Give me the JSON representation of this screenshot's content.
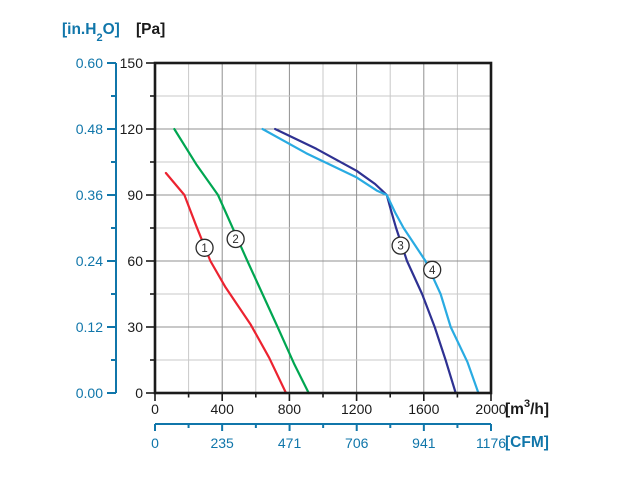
{
  "units": {
    "inh2o": {
      "pre": "[in.H",
      "sub": "2",
      "post": "O]"
    },
    "pa": "[Pa]",
    "m3h": {
      "pre": "[m",
      "sup": "3",
      "post": "/h]"
    },
    "cfm": "[CFM]"
  },
  "colors": {
    "blue_axis": "#1076aa",
    "axis_black": "#1a1a1a",
    "grid_major": "#909090",
    "grid_minor": "#c9c9c9",
    "marker_stroke": "#2b2b2b"
  },
  "chart_data": {
    "type": "line",
    "title": "",
    "grid": {
      "x_major_step": 400,
      "x_minor_step": 200,
      "y_major_step": 30,
      "y_minor_step": 15
    },
    "x_axes": [
      {
        "id": "m3h",
        "label": "[m3/h]",
        "range": [
          0,
          2000
        ],
        "major_ticks": [
          0,
          400,
          800,
          1200,
          1600,
          2000
        ],
        "tick_labels": [
          "0",
          "400",
          "800",
          "1200",
          "1600",
          "2000"
        ],
        "minor_step": 200
      },
      {
        "id": "cfm",
        "label": "[CFM]",
        "range": [
          0,
          1176
        ],
        "major_ticks": [
          0,
          235,
          471,
          706,
          941,
          1176
        ],
        "tick_labels": [
          "0",
          "235",
          "471",
          "706",
          "941",
          "1176"
        ]
      }
    ],
    "y_axes": [
      {
        "id": "pa",
        "label": "[Pa]",
        "range": [
          0,
          150
        ],
        "major_ticks": [
          0,
          30,
          60,
          90,
          120,
          150
        ],
        "tick_labels": [
          "0",
          "30",
          "60",
          "90",
          "120",
          "150"
        ],
        "minor_step": 15
      },
      {
        "id": "inh2o",
        "label": "[in.H2O]",
        "range": [
          0,
          0.6
        ],
        "major_ticks": [
          0,
          0.12,
          0.24,
          0.36,
          0.48,
          0.6
        ],
        "tick_labels": [
          "0.00",
          "0.12",
          "0.24",
          "0.36",
          "0.48",
          "0.60"
        ]
      }
    ],
    "series": [
      {
        "name": "1",
        "color": "#ec2330",
        "points": [
          [
            65,
            100
          ],
          [
            175,
            90
          ],
          [
            245,
            76
          ],
          [
            330,
            60
          ],
          [
            420,
            48
          ],
          [
            570,
            31
          ],
          [
            680,
            16
          ],
          [
            780,
            0
          ]
        ]
      },
      {
        "name": "2",
        "color": "#00a651",
        "points": [
          [
            115,
            120
          ],
          [
            245,
            104
          ],
          [
            375,
            90
          ],
          [
            550,
            60
          ],
          [
            640,
            45
          ],
          [
            730,
            30
          ],
          [
            830,
            13
          ],
          [
            915,
            0
          ]
        ]
      },
      {
        "name": "3",
        "color": "#2e3192",
        "points": [
          [
            715,
            120
          ],
          [
            960,
            111
          ],
          [
            1200,
            101
          ],
          [
            1310,
            95
          ],
          [
            1380,
            90
          ],
          [
            1405,
            83
          ],
          [
            1435,
            75
          ],
          [
            1500,
            60
          ],
          [
            1590,
            45
          ],
          [
            1665,
            30
          ],
          [
            1730,
            15
          ],
          [
            1790,
            0
          ]
        ]
      },
      {
        "name": "4",
        "color": "#29abe2",
        "points": [
          [
            640,
            120
          ],
          [
            900,
            109
          ],
          [
            1200,
            98
          ],
          [
            1320,
            92
          ],
          [
            1380,
            90
          ],
          [
            1430,
            82
          ],
          [
            1480,
            75
          ],
          [
            1610,
            60
          ],
          [
            1700,
            45
          ],
          [
            1760,
            30
          ],
          [
            1860,
            14
          ],
          [
            1925,
            0
          ]
        ]
      }
    ],
    "curve_markers": [
      {
        "label": "1",
        "x": 295,
        "y": 66
      },
      {
        "label": "2",
        "x": 480,
        "y": 70
      },
      {
        "label": "3",
        "x": 1462,
        "y": 67
      },
      {
        "label": "4",
        "x": 1650,
        "y": 56
      }
    ],
    "legend": "none"
  }
}
